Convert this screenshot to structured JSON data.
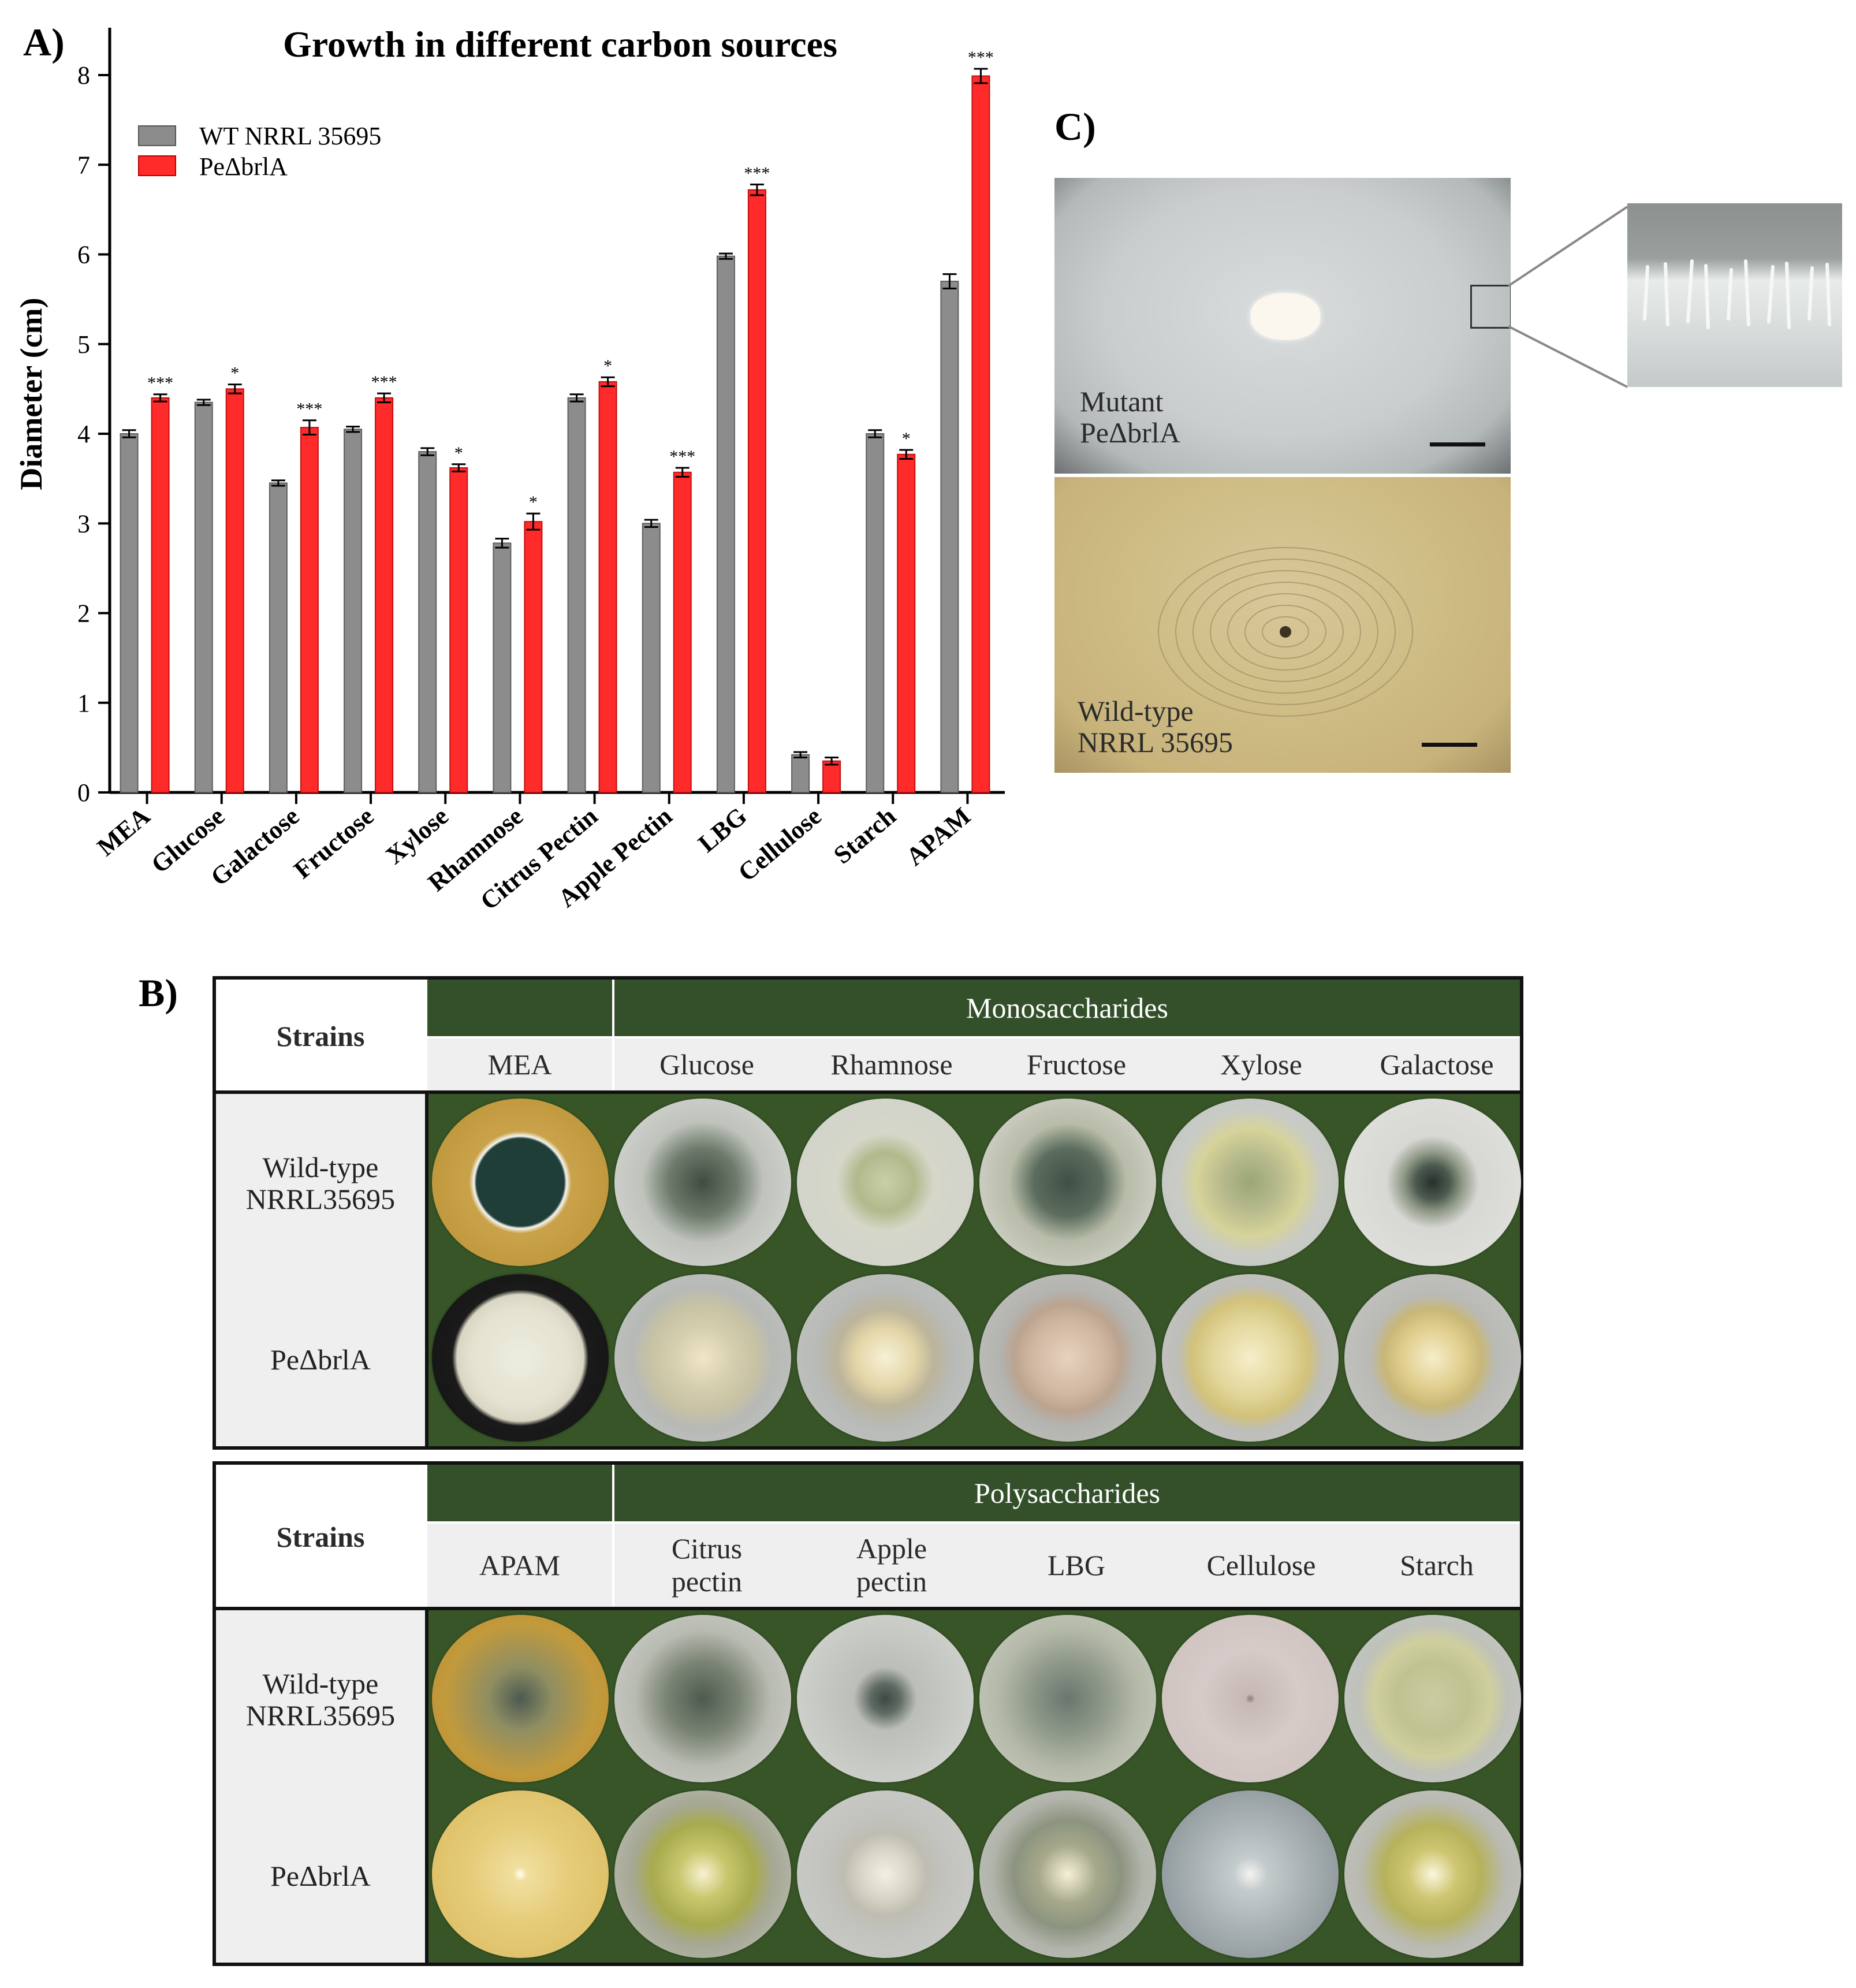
{
  "panel_labels": {
    "a": "A)",
    "b": "B)",
    "c": "C)"
  },
  "chart_data": {
    "type": "bar",
    "title": "Growth in different carbon sources",
    "ylabel": "Diameter (cm)",
    "xlabel": "",
    "ylim": [
      0,
      8
    ],
    "yticks": [
      "0",
      "1",
      "2",
      "3",
      "4",
      "5",
      "6",
      "7",
      "8"
    ],
    "grid": false,
    "legend_position": "top-left",
    "categories": [
      "MEA",
      "Glucose",
      "Galactose",
      "Fructose",
      "Xylose",
      "Rhamnose",
      "Citrus Pectin",
      "Apple Pectin",
      "LBG",
      "Cellulose",
      "Starch",
      "APAM"
    ],
    "series": [
      {
        "name": "WT NRRL 35695",
        "color": "#8c8c8c",
        "values": [
          4.0,
          4.35,
          3.45,
          4.05,
          3.8,
          2.78,
          4.4,
          3.0,
          5.98,
          0.42,
          4.0,
          5.7
        ],
        "errors": [
          0.04,
          0.03,
          0.03,
          0.03,
          0.04,
          0.05,
          0.04,
          0.04,
          0.03,
          0.03,
          0.04,
          0.08
        ]
      },
      {
        "name": "PeΔbrlA",
        "color": "#ff2a2a",
        "values": [
          4.4,
          4.5,
          4.07,
          4.4,
          3.62,
          3.02,
          4.58,
          3.57,
          6.72,
          0.35,
          3.77,
          7.99
        ],
        "errors": [
          0.04,
          0.05,
          0.08,
          0.05,
          0.04,
          0.09,
          0.05,
          0.05,
          0.06,
          0.04,
          0.05,
          0.08
        ]
      }
    ],
    "significance": [
      "***",
      "*",
      "***",
      "***",
      "*",
      "*",
      "*",
      "***",
      "***",
      "",
      "*",
      "***"
    ]
  },
  "panel_c": {
    "mutant_label_line1": "Mutant",
    "mutant_label_line2": "PeΔbrlA",
    "wildtype_label_line1": "Wild-type",
    "wildtype_label_line2": "NRRL 35695"
  },
  "panel_b": {
    "mono": {
      "strains_header": "Strains",
      "group_header": "Monosaccharides",
      "control": "MEA",
      "sugars": [
        "Glucose",
        "Rhamnose",
        "Fructose",
        "Xylose",
        "Galactose"
      ],
      "wt_line1": "Wild-type",
      "wt_line2": "NRRL35695",
      "mutant": "PeΔbrlA"
    },
    "poly": {
      "strains_header": "Strains",
      "group_header": "Polysaccharides",
      "control": "APAM",
      "sugars_line1": [
        "Citrus",
        "Apple",
        "LBG",
        "Cellulose",
        "Starch"
      ],
      "sugars_line2": [
        "pectin",
        "pectin",
        "",
        "",
        ""
      ],
      "wt_line1": "Wild-type",
      "wt_line2": "NRRL35695",
      "mutant": "PeΔbrlA"
    }
  },
  "colors": {
    "table_green": "#33502a",
    "plate_bg": "#375527",
    "wt_bar": "#8c8c8c",
    "mutant_bar": "#ff2a2a"
  }
}
